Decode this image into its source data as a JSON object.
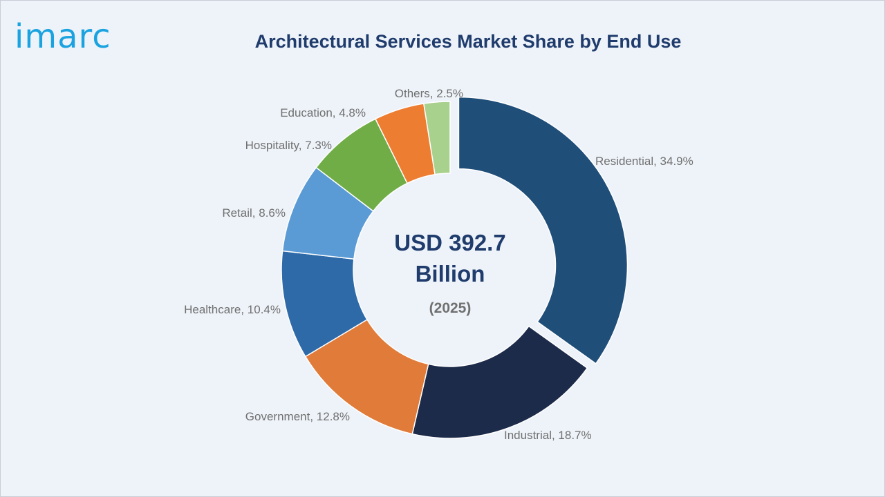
{
  "brand": {
    "logo_text": "imarc"
  },
  "chart_data": {
    "type": "pie",
    "variant": "donut",
    "title": "Architectural Services Market Share by End Use",
    "unit": "%",
    "categories": [
      "Residential",
      "Industrial",
      "Government",
      "Healthcare",
      "Retail",
      "Hospitality",
      "Education",
      "Others"
    ],
    "values": [
      34.9,
      18.7,
      12.8,
      10.4,
      8.6,
      7.3,
      4.8,
      2.5
    ],
    "labels": [
      "Residential, 34.9%",
      "Industrial, 18.7%",
      "Government, 12.8%",
      "Healthcare, 10.4%",
      "Retail, 8.6%",
      "Hospitality, 7.3%",
      "Education, 4.8%",
      "Others, 2.5%"
    ],
    "colors": [
      "#1f4e79",
      "#1c2b4a",
      "#e07b39",
      "#2e6aa8",
      "#5b9bd5",
      "#70ad47",
      "#ed7d31",
      "#a9d18e"
    ],
    "exploded": "Residential",
    "center_text": {
      "line1": "USD 392.7",
      "line2": "Billion",
      "line3": "(2025)"
    }
  }
}
